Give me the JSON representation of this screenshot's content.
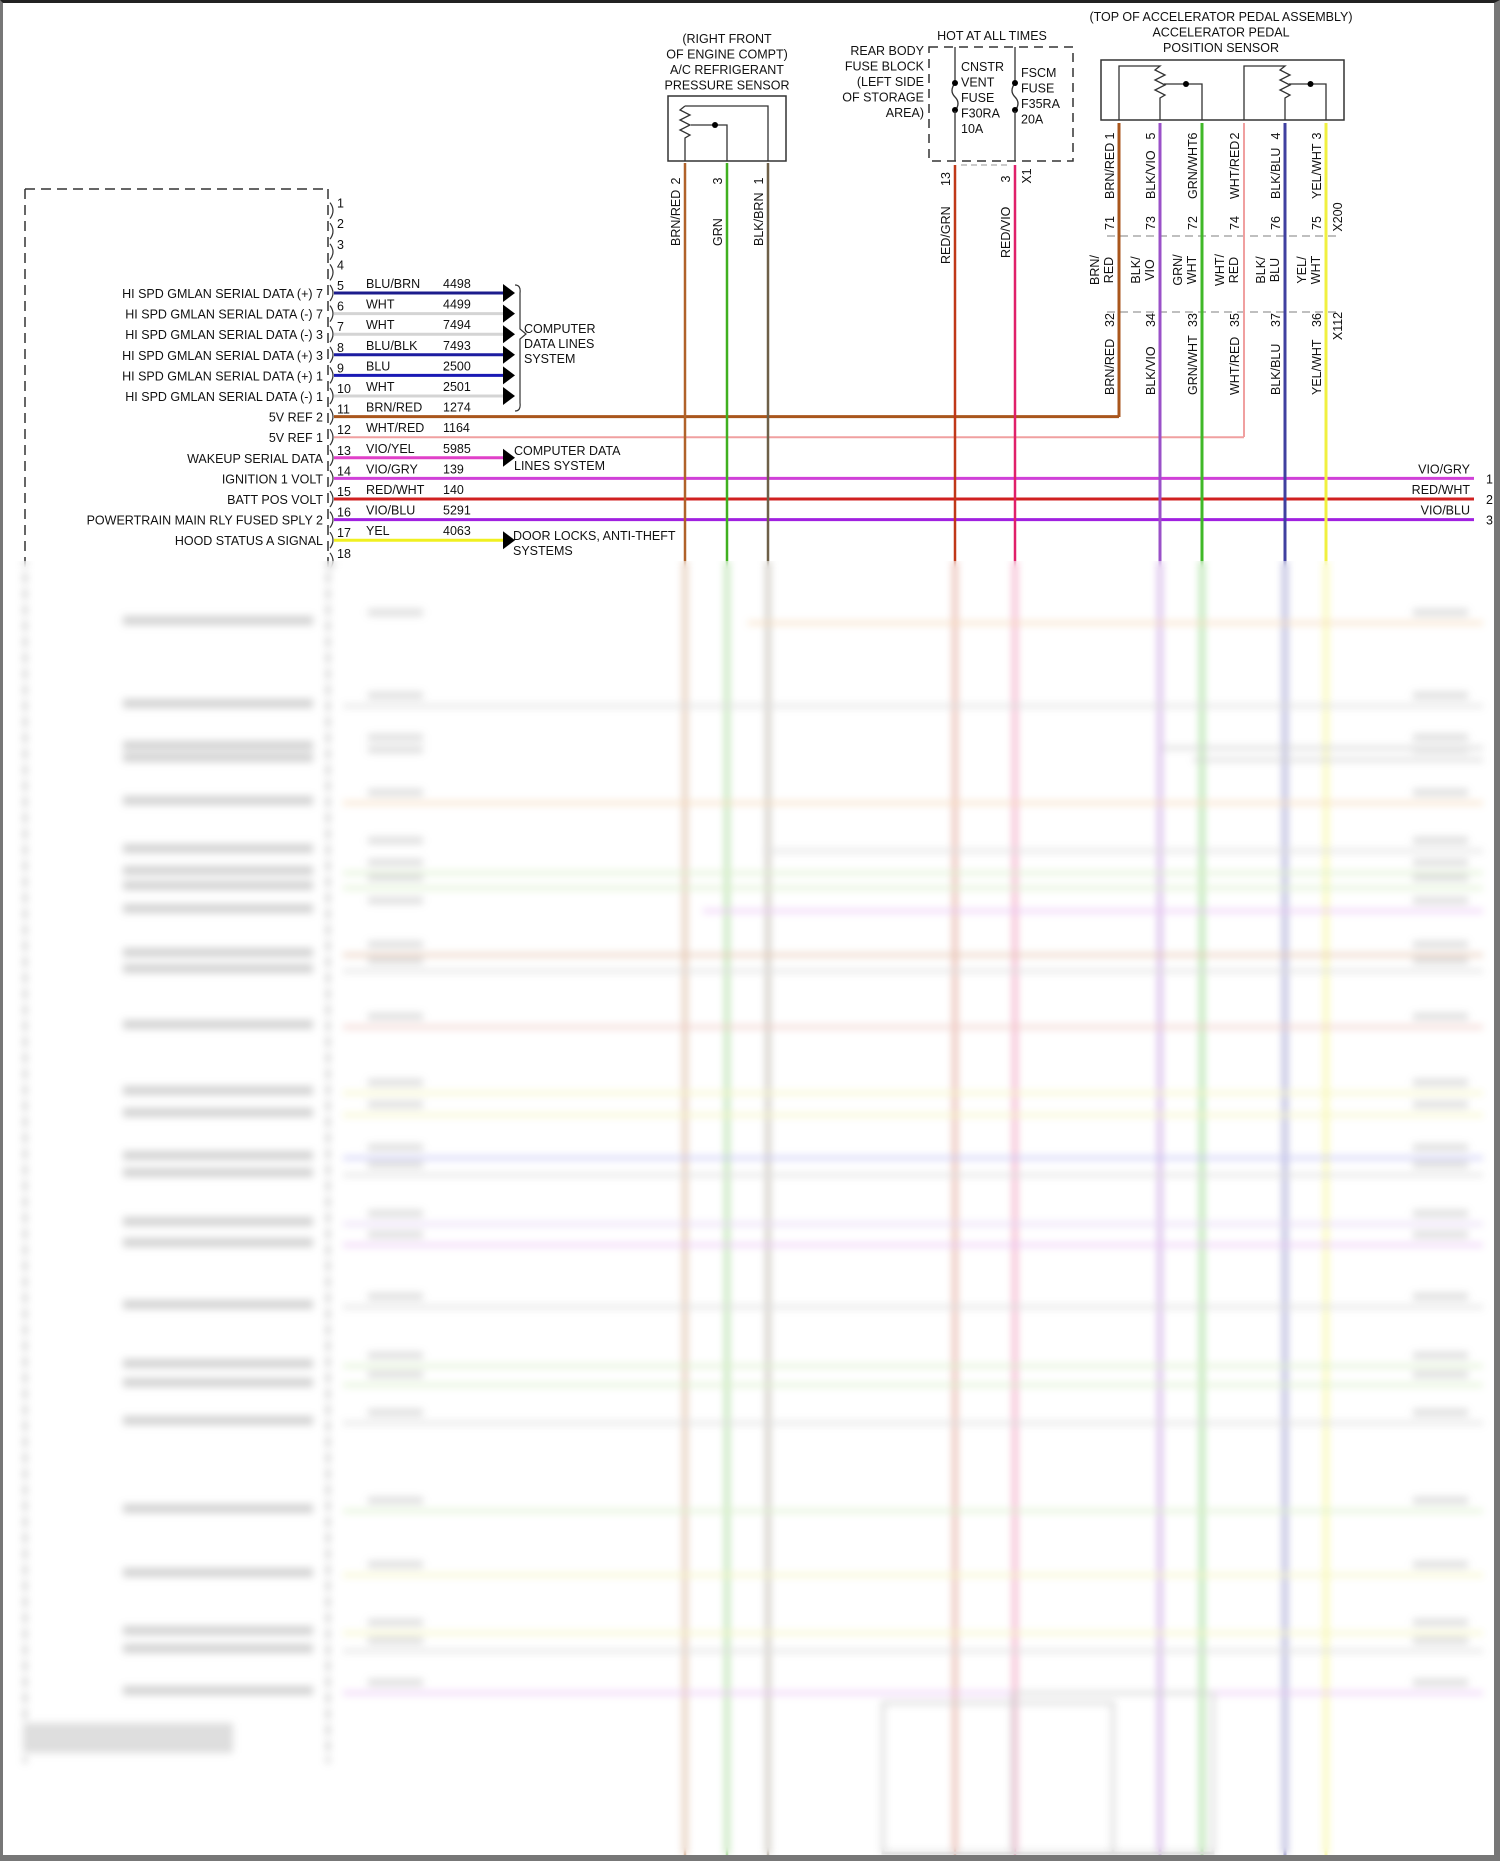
{
  "module": {
    "pins": [
      {
        "pin": "1",
        "label": "",
        "wire": "",
        "circuit": ""
      },
      {
        "pin": "2",
        "label": "",
        "wire": "",
        "circuit": ""
      },
      {
        "pin": "3",
        "label": "",
        "wire": "",
        "circuit": ""
      },
      {
        "pin": "4",
        "label": "",
        "wire": "",
        "circuit": ""
      },
      {
        "pin": "5",
        "label": "HI SPD GMLAN SERIAL DATA (+) 7",
        "wire": "BLU/BRN",
        "circuit": "4498",
        "color": "#1c1c8c"
      },
      {
        "pin": "6",
        "label": "HI SPD GMLAN SERIAL DATA (-) 7",
        "wire": "WHT",
        "circuit": "4499",
        "color": "#d4d4d4"
      },
      {
        "pin": "7",
        "label": "HI SPD GMLAN SERIAL DATA (-) 3",
        "wire": "WHT",
        "circuit": "7494",
        "color": "#d4d4d4"
      },
      {
        "pin": "8",
        "label": "HI SPD GMLAN SERIAL DATA (+) 3",
        "wire": "BLU/BLK",
        "circuit": "7493",
        "color": "#1c1ca0"
      },
      {
        "pin": "9",
        "label": "HI SPD GMLAN SERIAL DATA (+) 1",
        "wire": "BLU",
        "circuit": "2500",
        "color": "#1a1ab4"
      },
      {
        "pin": "10",
        "label": "HI SPD GMLAN SERIAL DATA (-) 1",
        "wire": "WHT",
        "circuit": "2501",
        "color": "#d4d4d4"
      },
      {
        "pin": "11",
        "label": "5V REF 2",
        "wire": "BRN/RED",
        "circuit": "1274",
        "color": "#a9561c"
      },
      {
        "pin": "12",
        "label": "5V REF 1",
        "wire": "WHT/RED",
        "circuit": "1164",
        "color": "#f0a0a0"
      },
      {
        "pin": "13",
        "label": "WAKEUP SERIAL DATA",
        "wire": "VIO/YEL",
        "circuit": "5985",
        "color": "#e040c8"
      },
      {
        "pin": "14",
        "label": "IGNITION 1 VOLT",
        "wire": "VIO/GRY",
        "circuit": "139",
        "color": "#d040d8"
      },
      {
        "pin": "15",
        "label": "BATT POS VOLT",
        "wire": "RED/WHT",
        "circuit": "140",
        "color": "#d02020"
      },
      {
        "pin": "16",
        "label": "POWERTRAIN MAIN RLY FUSED SPLY 2",
        "wire": "VIO/BLU",
        "circuit": "5291",
        "color": "#a020e0"
      },
      {
        "pin": "17",
        "label": "HOOD STATUS A SIGNAL",
        "wire": "YEL",
        "circuit": "4063",
        "color": "#f0f020"
      },
      {
        "pin": "18",
        "label": "",
        "wire": "",
        "circuit": ""
      }
    ],
    "destinations": {
      "data_lines": "COMPUTER\nDATA LINES\nSYSTEM",
      "data_lines_2": "COMPUTER DATA\nLINES SYSTEM",
      "door_locks": "DOOR LOCKS, ANTI-THEFT\nSYSTEMS"
    },
    "right_connector": [
      {
        "wire": "VIO/GRY",
        "pin": "1"
      },
      {
        "wire": "RED/WHT",
        "pin": "2"
      },
      {
        "wire": "VIO/BLU",
        "pin": "3"
      }
    ]
  },
  "ac_sensor": {
    "title": "(RIGHT FRONT\nOF ENGINE COMPT)\nA/C REFRIGERANT\nPRESSURE SENSOR",
    "pins": [
      {
        "pin": "2",
        "wire": "BRN/RED",
        "color": "#b0622a"
      },
      {
        "pin": "3",
        "wire": "GRN",
        "color": "#40b020"
      },
      {
        "pin": "1",
        "wire": "BLK/BRN",
        "color": "#6e6048"
      }
    ]
  },
  "fuse_block": {
    "hot_label": "HOT AT ALL TIMES",
    "title": "REAR BODY\nFUSE BLOCK\n(LEFT SIDE\nOF STORAGE\nAREA)",
    "fuses": [
      {
        "name": "CNSTR\nVENT\nFUSE\nF30RA\n10A",
        "pin": "13",
        "wire": "RED/GRN",
        "color": "#c03818"
      },
      {
        "name": "FSCM\nFUSE\nF35RA\n20A",
        "pin": "3",
        "wire": "RED/VIO",
        "color": "#e0206a"
      }
    ],
    "connector": "X1"
  },
  "app_sensor": {
    "title": "(TOP OF ACCELERATOR PEDAL ASSEMBLY)\nACCELERATOR PEDAL\nPOSITION SENSOR",
    "x200": "X200",
    "x112": "X112",
    "wires": [
      {
        "pin": "1",
        "wire": "BRN/RED",
        "x200": "71",
        "mid": "BRN/\nRED",
        "x112": "32",
        "color": "#a9561c"
      },
      {
        "pin": "5",
        "wire": "BLK/VIO",
        "x200": "73",
        "mid": "BLK/\nVIO",
        "x112": "34",
        "color": "#9a50c8"
      },
      {
        "pin": "6",
        "wire": "GRN/WHT",
        "x200": "72",
        "mid": "GRN/\nWHT",
        "x112": "33",
        "color": "#40b828"
      },
      {
        "pin": "2",
        "wire": "WHT/RED",
        "x200": "74",
        "mid": "WHT/\nRED",
        "x112": "35",
        "color": "#f0a0a0"
      },
      {
        "pin": "4",
        "wire": "BLK/BLU",
        "x200": "76",
        "mid": "BLK/\nBLU",
        "x112": "37",
        "color": "#4040a0"
      },
      {
        "pin": "3",
        "wire": "YEL/WHT",
        "x200": "75",
        "mid": "YEL/\nWHT",
        "x112": "36",
        "color": "#f0f040"
      }
    ]
  }
}
